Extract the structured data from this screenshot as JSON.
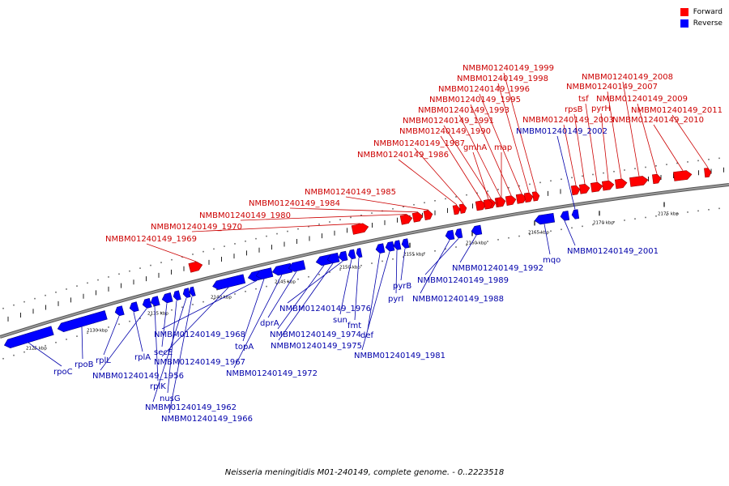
{
  "legend": {
    "forward": {
      "label": "Forward",
      "color": "#ff0000"
    },
    "reverse": {
      "label": "Reverse",
      "color": "#0000ff"
    }
  },
  "caption": "Neisseria meningitidis M01-240149, complete genome. - 0..2223518",
  "ticks": [
    "2125 kbp",
    "2130 kbp",
    "2135 kbp",
    "2140 kbp",
    "2145 kbp",
    "2150 kbp",
    "2155 kbp",
    "2160 kbp",
    "2165 kbp",
    "2170 kbp",
    "2175 kbp"
  ],
  "genes_forward": [
    "NMBM01240149_1969",
    "NMBM01240149_1970",
    "NMBM01240149_1980",
    "NMBM01240149_1984",
    "NMBM01240149_1985",
    "NMBM01240149_1986",
    "NMBM01240149_1987",
    "NMBM01240149_1990",
    "NMBM01240149_1991",
    "NMBM01240149_1993",
    "NMBM01240149_1995",
    "NMBM01240149_1996",
    "NMBM01240149_1998",
    "NMBM01240149_1999",
    "gmhA",
    "map",
    "NMBM01240149_2003",
    "rpsB",
    "tsf",
    "pyrH",
    "NMBM01240149_2007",
    "NMBM01240149_2008",
    "NMBM01240149_2009",
    "NMBM01240149_2010",
    "NMBM01240149_2011"
  ],
  "genes_reverse": [
    "rpoC",
    "rpoB",
    "rplL",
    "rplA",
    "NMBM01240149_1956",
    "rplK",
    "secE",
    "nusG",
    "NMBM01240149_1962",
    "NMBM01240149_1966",
    "NMBM01240149_1967",
    "NMBM01240149_1968",
    "topA",
    "NMBM01240149_1972",
    "dprA",
    "NMBM01240149_1974",
    "NMBM01240149_1975",
    "NMBM01240149_1976",
    "sun",
    "fmt",
    "def",
    "NMBM01240149_1981",
    "pyrI",
    "pyrB",
    "NMBM01240149_1988",
    "NMBM01240149_1989",
    "NMBM01240149_1992",
    "mqo",
    "NMBM01240149_2001",
    "NMBM01240149_2002"
  ]
}
